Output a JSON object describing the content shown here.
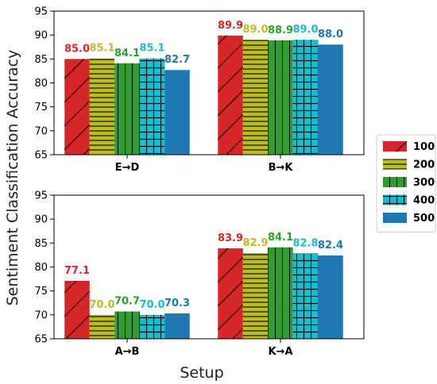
{
  "chart_data": {
    "type": "bar",
    "xlabel": "Setup",
    "ylabel": "Sentiment Classification Accuracy",
    "legend": {
      "placement": "right",
      "entries": [
        "100",
        "200",
        "300",
        "400",
        "500"
      ]
    },
    "series_style": [
      {
        "color": "#d62728",
        "hatch": "diagonal"
      },
      {
        "color": "#bcbd22",
        "hatch": "horizontal"
      },
      {
        "color": "#2ca02c",
        "hatch": "vertical"
      },
      {
        "color": "#17becf",
        "hatch": "grid"
      },
      {
        "color": "#1f77b4",
        "hatch": "none"
      }
    ],
    "panels": [
      {
        "categories": [
          "E→D",
          "B→K"
        ],
        "ylim": [
          65,
          95
        ],
        "yticks": [
          "65",
          "70",
          "75",
          "80",
          "85",
          "90",
          "95"
        ],
        "series": [
          {
            "name": "100",
            "values": [
              85.0,
              89.9
            ],
            "labels": [
              "85.0",
              "89.9"
            ]
          },
          {
            "name": "200",
            "values": [
              85.1,
              89.0
            ],
            "labels": [
              "85.1",
              "89.0"
            ]
          },
          {
            "name": "300",
            "values": [
              84.1,
              88.9
            ],
            "labels": [
              "84.1",
              "88.9"
            ]
          },
          {
            "name": "400",
            "values": [
              85.1,
              89.0
            ],
            "labels": [
              "85.1",
              "89.0"
            ]
          },
          {
            "name": "500",
            "values": [
              82.7,
              88.0
            ],
            "labels": [
              "82.7",
              "88.0"
            ]
          }
        ]
      },
      {
        "categories": [
          "A→B",
          "K→A"
        ],
        "ylim": [
          65,
          95
        ],
        "yticks": [
          "65",
          "70",
          "75",
          "80",
          "85",
          "90",
          "95"
        ],
        "series": [
          {
            "name": "100",
            "values": [
              77.1,
              83.9
            ],
            "labels": [
              "77.1",
              "83.9"
            ]
          },
          {
            "name": "200",
            "values": [
              70.0,
              82.9
            ],
            "labels": [
              "70.0",
              "82.9"
            ]
          },
          {
            "name": "300",
            "values": [
              70.7,
              84.1
            ],
            "labels": [
              "70.7",
              "84.1"
            ]
          },
          {
            "name": "400",
            "values": [
              70.0,
              82.8
            ],
            "labels": [
              "70.0",
              "82.8"
            ]
          },
          {
            "name": "500",
            "values": [
              70.3,
              82.4
            ],
            "labels": [
              "70.3",
              "82.4"
            ]
          }
        ]
      }
    ]
  }
}
